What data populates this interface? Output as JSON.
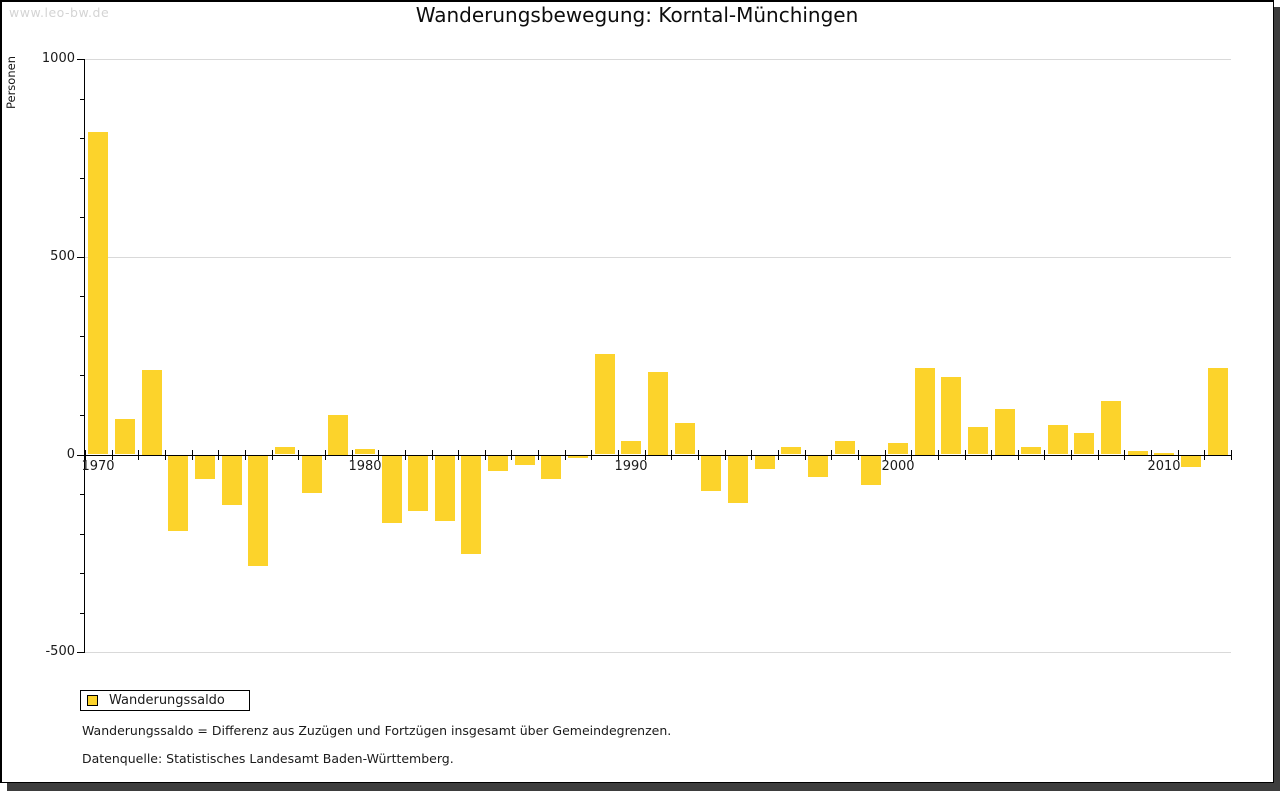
{
  "window": {
    "watermark": "www.leo-bw.de"
  },
  "title": "Wanderungsbewegung: Korntal-Münchingen",
  "chart_data": {
    "type": "bar",
    "title": "Wanderungsbewegung: Korntal-Münchingen",
    "xlabel": "",
    "ylabel": "Personen",
    "ylim": [
      -500,
      1000
    ],
    "y_major_ticks": [
      -500,
      0,
      500,
      1000
    ],
    "y_minor_tick_step": 100,
    "x_labeled_ticks": [
      1970,
      1980,
      1990,
      2000,
      2010
    ],
    "grid": "horizontal-major",
    "legend_position": "bottom-left",
    "bar_color": "#fcd32b",
    "categories": [
      1970,
      1971,
      1972,
      1973,
      1974,
      1975,
      1976,
      1977,
      1978,
      1979,
      1980,
      1981,
      1982,
      1983,
      1984,
      1985,
      1986,
      1987,
      1988,
      1989,
      1990,
      1991,
      1992,
      1993,
      1994,
      1995,
      1996,
      1997,
      1998,
      1999,
      2000,
      2001,
      2002,
      2003,
      2004,
      2005,
      2006,
      2007,
      2008,
      2009,
      2010,
      2011,
      2012
    ],
    "series": [
      {
        "name": "Wanderungssaldo",
        "values": [
          815,
          90,
          215,
          -190,
          -60,
          -125,
          -280,
          20,
          -95,
          100,
          15,
          -170,
          -140,
          -165,
          -250,
          -40,
          -25,
          -60,
          -5,
          255,
          35,
          210,
          80,
          -90,
          -120,
          -35,
          20,
          -55,
          35,
          -75,
          30,
          220,
          195,
          70,
          115,
          20,
          75,
          55,
          135,
          10,
          5,
          -30,
          220
        ]
      }
    ]
  },
  "legend": {
    "label": "Wanderungssaldo",
    "swatch_color": "#fcd32b"
  },
  "footnotes": [
    "Wanderungssaldo = Differenz aus Zuzügen und Fortzügen insgesamt über Gemeindegrenzen.",
    "Datenquelle: Statistisches Landesamt Baden-Württemberg."
  ]
}
